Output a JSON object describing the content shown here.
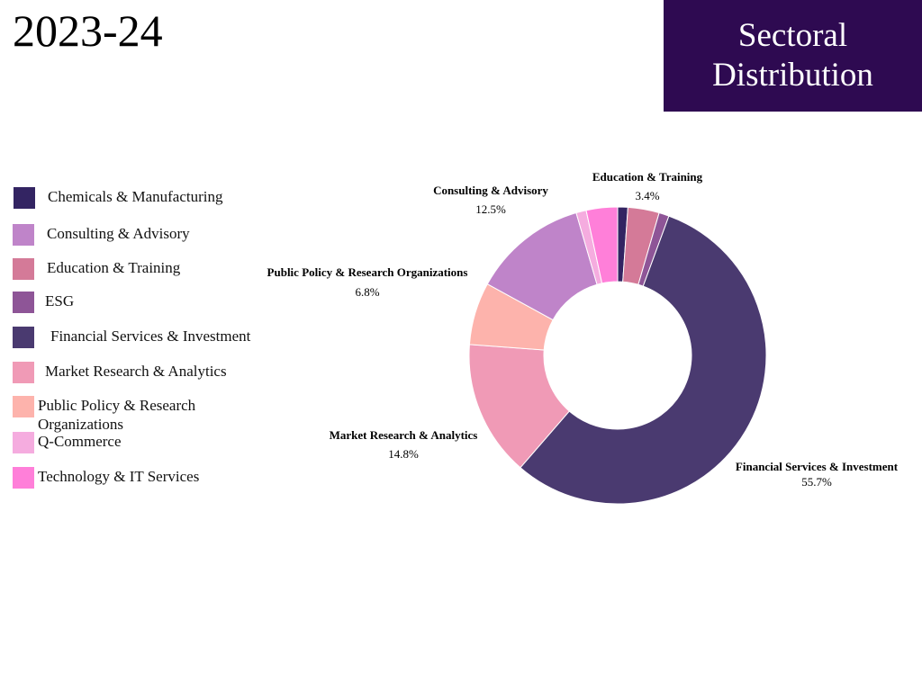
{
  "header": {
    "year": "2023-24",
    "title_line1": "Sectoral",
    "title_line2": "Distribution"
  },
  "colors": {
    "title_bg": "#2e0a51"
  },
  "chart_data": {
    "type": "pie",
    "title": "Sectoral Distribution",
    "donut": true,
    "start_angle_deg": 0,
    "direction": "clockwise",
    "slices": [
      {
        "name": "Chemicals & Manufacturing",
        "value": 1.1,
        "color": "#332462",
        "label": ""
      },
      {
        "name": "Education & Training",
        "value": 3.4,
        "color": "#d47a98",
        "label": "3.4%"
      },
      {
        "name": "ESG",
        "value": 1.1,
        "color": "#8e5597",
        "label": ""
      },
      {
        "name": "Financial Services & Investment",
        "value": 55.7,
        "color": "#4a3a70",
        "label": "55.7%"
      },
      {
        "name": "Market Research & Analytics",
        "value": 14.8,
        "color": "#f09ab6",
        "label": "14.8%"
      },
      {
        "name": "Public Policy & Research Organizations",
        "value": 6.8,
        "color": "#fdb3ac",
        "label": "6.8%"
      },
      {
        "name": "Consulting & Advisory",
        "value": 12.5,
        "color": "#bf84c9",
        "label": "12.5%"
      },
      {
        "name": "Q-Commerce",
        "value": 1.1,
        "color": "#f5acdf",
        "label": ""
      },
      {
        "name": "Technology & IT Services",
        "value": 3.4,
        "color": "#ff7fd9",
        "label": ""
      }
    ],
    "legend": [
      {
        "name": "Chemicals & Manufacturing",
        "color": "#332462"
      },
      {
        "name": "Consulting & Advisory",
        "color": "#bf84c9"
      },
      {
        "name": "Education & Training",
        "color": "#d47a98"
      },
      {
        "name": "ESG",
        "color": "#8e5597"
      },
      {
        "name": "Financial Services & Investment",
        "color": "#4a3a70"
      },
      {
        "name": "Market Research & Analytics",
        "color": "#f09ab6"
      },
      {
        "name": "Public Policy & Research Organizations",
        "color": "#fdb3ac"
      },
      {
        "name": "Q-Commerce",
        "color": "#f5acdf"
      },
      {
        "name": "Technology & IT Services",
        "color": "#ff7fd9"
      }
    ],
    "legend_placement": "left"
  }
}
